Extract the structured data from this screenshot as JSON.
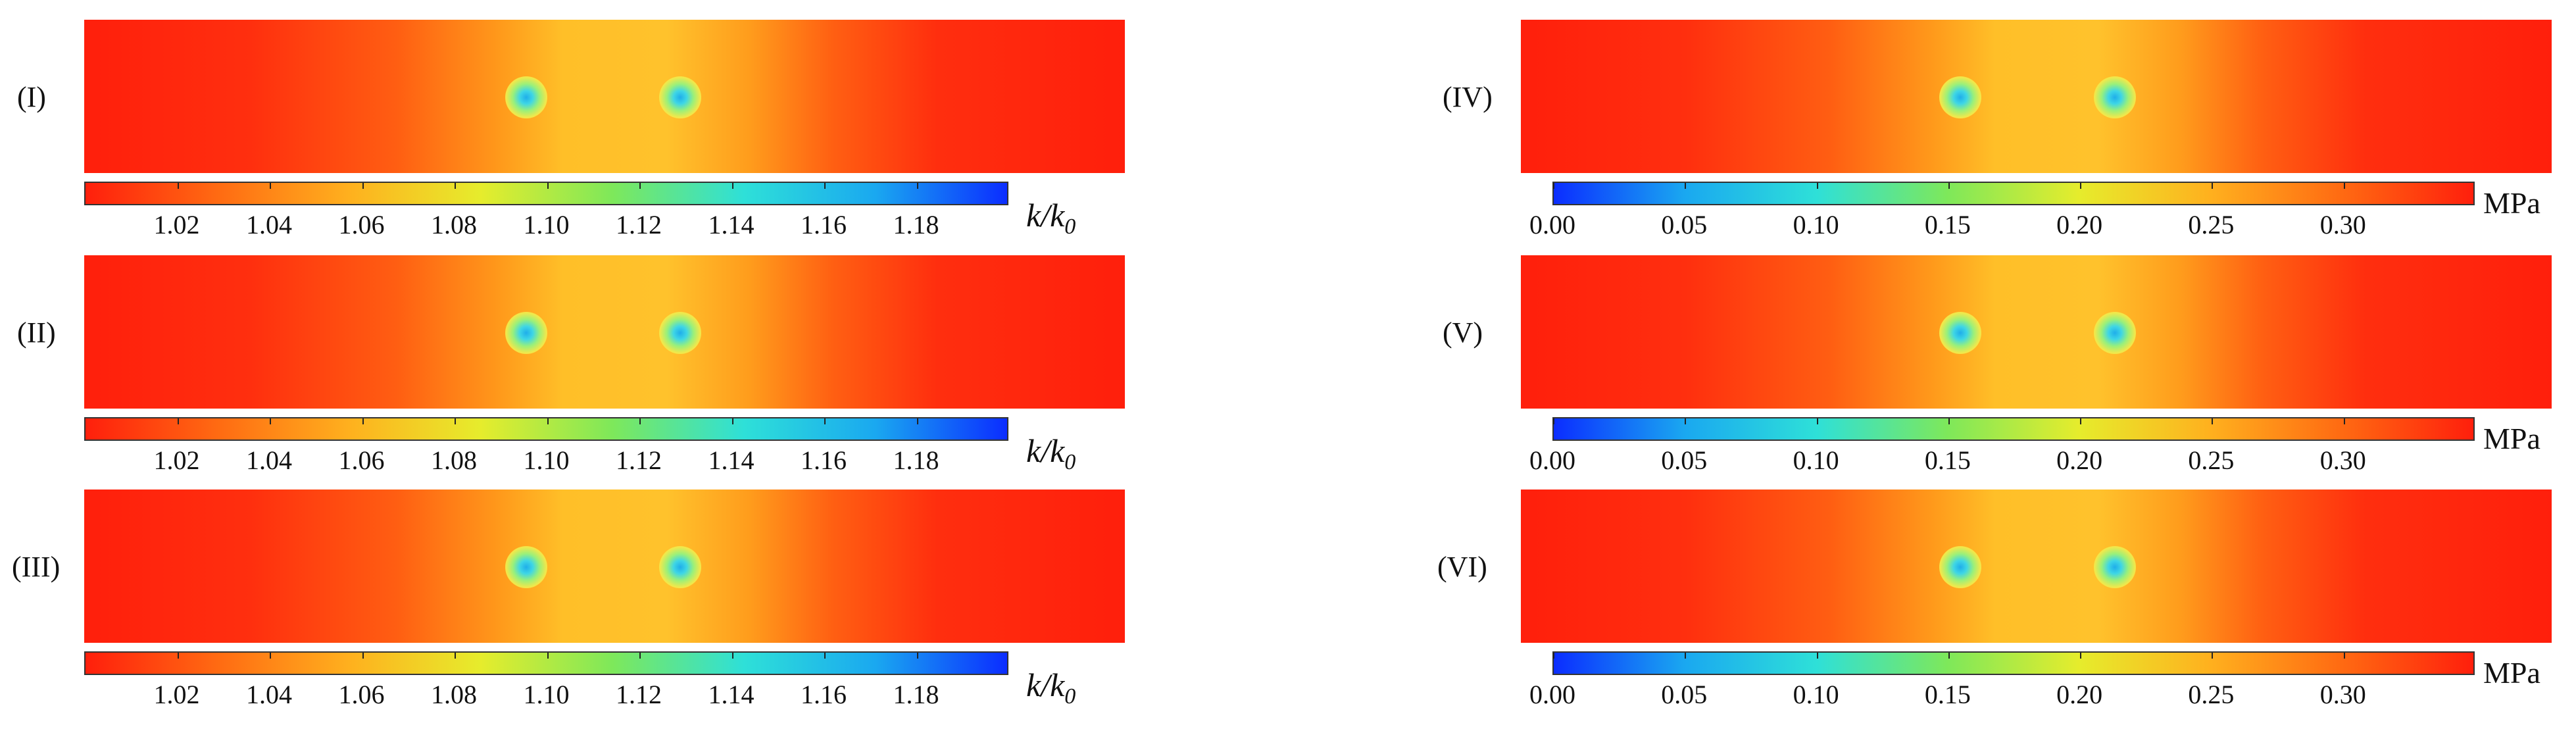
{
  "permeability": {
    "unit_main": "k/k",
    "unit_sub": "0",
    "colormap": [
      "#ff1f0c",
      "#ff6a12",
      "#ffb01e",
      "#e6ec2c",
      "#7ee85a",
      "#2ee0d8",
      "#1aa8f0",
      "#0b2dff"
    ],
    "range": [
      1.0,
      1.2
    ],
    "ticks": [
      "1.02",
      "1.04",
      "1.06",
      "1.08",
      "1.10",
      "1.12",
      "1.14",
      "1.16",
      "1.18"
    ],
    "panels": [
      {
        "label": "(I)"
      },
      {
        "label": "(II)"
      },
      {
        "label": "(III)"
      }
    ]
  },
  "pressure": {
    "unit": "MPa",
    "colormap": [
      "#0b2dff",
      "#1aa8f0",
      "#2ee0d8",
      "#7ee85a",
      "#e6ec2c",
      "#ffb01e",
      "#ff6a12",
      "#ff1f0c"
    ],
    "range": [
      0.0,
      0.35
    ],
    "ticks": [
      "0.00",
      "0.05",
      "0.10",
      "0.15",
      "0.20",
      "0.25",
      "0.30"
    ],
    "panels": [
      {
        "label": "(IV)"
      },
      {
        "label": "(V)"
      },
      {
        "label": "(VI)"
      }
    ]
  }
}
